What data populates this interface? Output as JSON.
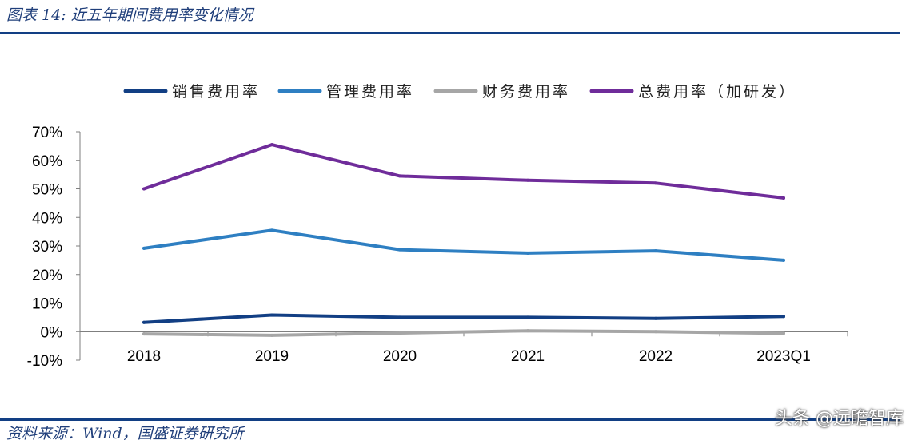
{
  "figure_title": "图表 14: 近五年期间费用率变化情况",
  "source_note": "资料来源：Wind，国盛证券研究所",
  "watermark": "头条 @远瞻智库",
  "colors": {
    "accent": "#123f84",
    "sales": "#123f84",
    "admin": "#2e7fc2",
    "finance": "#a6a6a6",
    "total": "#6f2c9a"
  },
  "chart_data": {
    "type": "line",
    "title": "",
    "xlabel": "",
    "ylabel": "",
    "categories": [
      "2018",
      "2019",
      "2020",
      "2021",
      "2022",
      "2023Q1"
    ],
    "ylim": [
      -10,
      70
    ],
    "yticks": [
      -10,
      0,
      10,
      20,
      30,
      40,
      50,
      60,
      70
    ],
    "ytick_labels": [
      "-10%",
      "0%",
      "10%",
      "20%",
      "30%",
      "40%",
      "50%",
      "60%",
      "70%"
    ],
    "legend_position": "top",
    "grid": false,
    "series": [
      {
        "name": "销售费用率",
        "color": "#123f84",
        "values": [
          3.2,
          5.8,
          5.0,
          5.0,
          4.6,
          5.3
        ]
      },
      {
        "name": "管理费用率",
        "color": "#2e7fc2",
        "values": [
          29.2,
          35.5,
          28.7,
          27.5,
          28.3,
          25.0
        ]
      },
      {
        "name": "财务费用率",
        "color": "#a6a6a6",
        "values": [
          -0.8,
          -1.3,
          -0.5,
          0.3,
          0.0,
          -0.6
        ]
      },
      {
        "name": "总费用率（加研发）",
        "color": "#6f2c9a",
        "values": [
          50.0,
          65.5,
          54.5,
          53.0,
          52.0,
          46.8
        ]
      }
    ]
  }
}
